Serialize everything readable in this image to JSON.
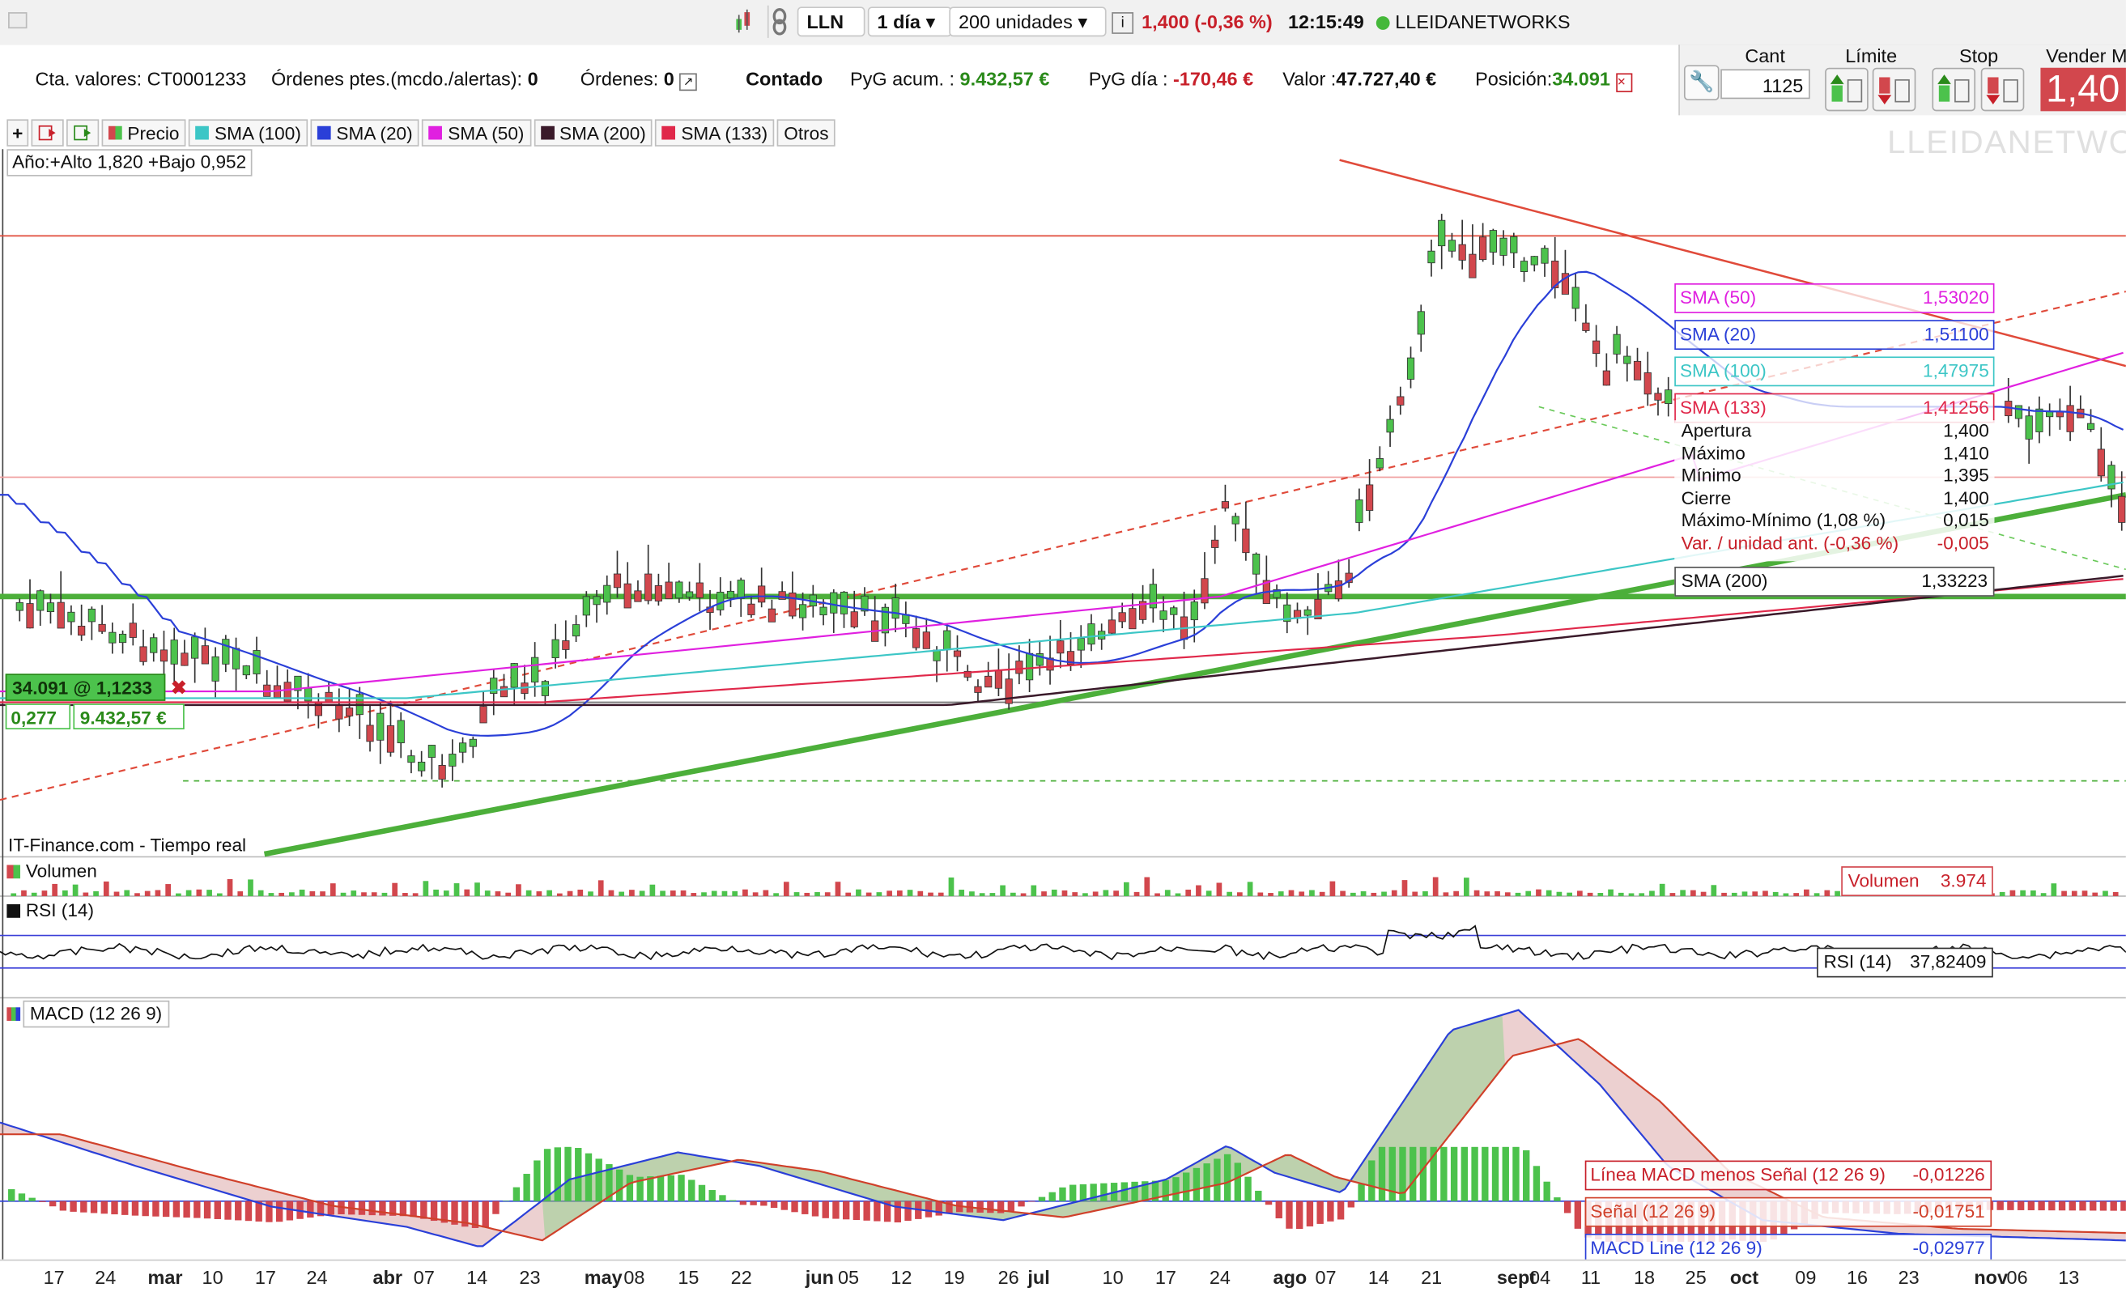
{
  "topbar": {
    "symbol": "LLN",
    "period": "1 día",
    "units": "200 unidades",
    "quote": "1,400 (-0,36 %)",
    "time": "12:15:49",
    "company": "LLEIDANETWORKS"
  },
  "account": {
    "cta_label": "Cta. valores:",
    "cta_value": "CT0001233",
    "pending_label": "Órdenes ptes.(mcdo./alertas):",
    "pending_value": "0",
    "orders_label": "Órdenes:",
    "orders_value": "0",
    "contado": "Contado",
    "pyg_acum_label": "PyG acum. :",
    "pyg_acum_value": "9.432,57 €",
    "pyg_dia_label": "PyG día :",
    "pyg_dia_value": "-170,46 €",
    "valor_label": "Valor :",
    "valor_value": "47.727,40 €",
    "posicion_label": "Posición:",
    "posicion_value": "34.091"
  },
  "order_panel": {
    "cant_label": "Cant",
    "cant_value": "1125",
    "limite_label": "Límite",
    "stop_label": "Stop",
    "vender_label": "Vender M",
    "vender_price": "1,40"
  },
  "legend": {
    "precio": "Precio",
    "sma100": "SMA (100)",
    "sma20": "SMA (20)",
    "sma50": "SMA (50)",
    "sma200": "SMA (200)",
    "sma133": "SMA (133)",
    "otros": "Otros"
  },
  "year_range": "Año:+Alto 1,820 +Bajo 0,952",
  "watermark": "LLEIDANETWORKS",
  "position_box": {
    "qty_price": "34.091 @ 1,1233",
    "delta": "0,277",
    "pnl": "9.432,57 €"
  },
  "source": "IT-Finance.com - Tiempo real",
  "sma_panel": [
    {
      "label": "SMA (50)",
      "value": "1,53020",
      "color": "#e020e0"
    },
    {
      "label": "SMA (20)",
      "value": "1,51100",
      "color": "#2a3fd8"
    },
    {
      "label": "SMA (100)",
      "value": "1,47975",
      "color": "#3cc6c6"
    },
    {
      "label": "SMA (133)",
      "value": "1,41256",
      "color": "#e0284a"
    }
  ],
  "ohlc": [
    {
      "label": "Apertura",
      "value": "1,400"
    },
    {
      "label": "Máximo",
      "value": "1,410"
    },
    {
      "label": "Mínimo",
      "value": "1,395"
    },
    {
      "label": "Cierre",
      "value": "1,400"
    },
    {
      "label": "Máximo-Mínimo (1,08 %)",
      "value": "0,015"
    },
    {
      "label": "Var. / unidad ant. (-0,36 %)",
      "value": "-0,005",
      "red": true
    }
  ],
  "sma200_box": {
    "label": "SMA (200)",
    "value": "1,33223"
  },
  "volume": {
    "title": "Volumen",
    "label": "Volumen",
    "value": "3.974"
  },
  "rsi": {
    "title": "RSI (14)",
    "label": "RSI (14)",
    "value": "37,82409"
  },
  "macd": {
    "title": "MACD (12 26 9)",
    "rows": [
      {
        "label": "Línea MACD menos Señal (12 26 9)",
        "value": "-0,01226",
        "color": "#c8202a"
      },
      {
        "label": "Señal (12 26 9)",
        "value": "-0,01751",
        "color": "#d0402a"
      },
      {
        "label": "MACD Line (12 26 9)",
        "value": "-0,02977",
        "color": "#2a3fd8"
      }
    ]
  },
  "x_axis": [
    "17",
    "24",
    "mar",
    "10",
    "17",
    "24",
    "abr",
    "07",
    "14",
    "23",
    "may",
    "08",
    "15",
    "22",
    "jun",
    "05",
    "12",
    "19",
    "26",
    "jul",
    "10",
    "17",
    "24",
    "ago",
    "07",
    "14",
    "21",
    "sept",
    "04",
    "11",
    "18",
    "25",
    "oct",
    "09",
    "16",
    "23",
    "nov",
    "06",
    "13"
  ],
  "colors": {
    "up": "#4cc24c",
    "down": "#d2474d",
    "trend": "#4caf3a",
    "resistance": "#e04a3a",
    "sma20": "#2a3fd8",
    "sma50": "#e020e0",
    "sma100": "#3cc6c6",
    "sma133": "#e0284a",
    "sma200": "#3a1a2a"
  }
}
